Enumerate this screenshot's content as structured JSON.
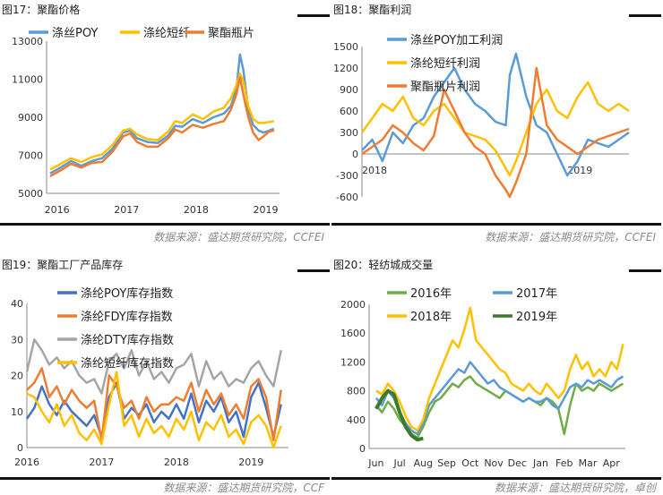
{
  "panels": [
    {
      "title": "图17：聚酯价格",
      "source": "数据来源：盛达期货研究院，CCFEI"
    },
    {
      "title": "图18：聚酯利润",
      "source": "数据来源：盛达期货研究院，CCFEI"
    },
    {
      "title": "图19：聚酯工厂产品库存",
      "source": "数据来源：盛达期货研究院，CCF"
    },
    {
      "title": "图20：轻纺城成交量",
      "source": "数据来源：盛达期货研究院，卓创"
    }
  ],
  "chart_data": [
    {
      "type": "line",
      "title": "图17：聚酯价格",
      "ylim": [
        5000,
        13000
      ],
      "yticks": [
        "5000",
        "7000",
        "9000",
        "11000",
        "13000"
      ],
      "xticks": [
        "2016",
        "2017",
        "2018",
        "2019"
      ],
      "xtick_pos": [
        2016.0,
        2017.0,
        2018.0,
        2019.0
      ],
      "xlim": [
        2015.85,
        2019.2
      ],
      "x": [
        2015.9,
        2016.05,
        2016.2,
        2016.35,
        2016.5,
        2016.65,
        2016.8,
        2016.95,
        2017.05,
        2017.15,
        2017.3,
        2017.45,
        2017.6,
        2017.7,
        2017.8,
        2017.95,
        2018.1,
        2018.25,
        2018.4,
        2018.5,
        2018.58,
        2018.63,
        2018.68,
        2018.75,
        2018.82,
        2018.9,
        2018.97,
        2019.05,
        2019.12
      ],
      "series": [
        {
          "name": "涤丝POY",
          "color": "#5b9bd5",
          "values": [
            6050,
            6350,
            6700,
            6450,
            6700,
            6850,
            7350,
            8200,
            8300,
            7900,
            7700,
            7650,
            8050,
            8550,
            8500,
            8900,
            8700,
            9000,
            9200,
            9600,
            10500,
            12300,
            11500,
            9400,
            8600,
            8300,
            8200,
            8300,
            8400
          ]
        },
        {
          "name": "涤纶短纤",
          "color": "#ffc000",
          "values": [
            6250,
            6550,
            6850,
            6650,
            6900,
            7050,
            7550,
            8300,
            8400,
            8100,
            7850,
            7800,
            8250,
            8800,
            8700,
            9150,
            8900,
            9300,
            9500,
            10000,
            10700,
            11300,
            10900,
            9600,
            8900,
            8700,
            8700,
            8750,
            8800
          ]
        },
        {
          "name": "聚酯瓶片",
          "color": "#ed7d31",
          "values": [
            5900,
            6200,
            6550,
            6350,
            6600,
            6650,
            7200,
            8000,
            8150,
            7700,
            7450,
            7450,
            7900,
            8350,
            8200,
            8600,
            8450,
            8650,
            8800,
            9400,
            10200,
            11100,
            10200,
            9000,
            8200,
            7800,
            8000,
            8250,
            8300
          ]
        }
      ]
    },
    {
      "type": "line",
      "title": "图18：聚酯利润",
      "ylim": [
        -600,
        1500
      ],
      "yticks": [
        "-600",
        "-300",
        "0",
        "300",
        "600",
        "900",
        "1200",
        "1500"
      ],
      "xticks": [
        "2018",
        "2019"
      ],
      "xtick_pos": [
        0.0,
        1.0
      ],
      "xlim": [
        0.0,
        1.3
      ],
      "x": [
        0.0,
        0.05,
        0.1,
        0.15,
        0.2,
        0.25,
        0.3,
        0.35,
        0.4,
        0.45,
        0.5,
        0.55,
        0.6,
        0.65,
        0.7,
        0.72,
        0.75,
        0.8,
        0.85,
        0.9,
        0.95,
        1.0,
        1.05,
        1.1,
        1.15,
        1.2,
        1.25,
        1.3
      ],
      "series": [
        {
          "name": "涤丝POY加工利润",
          "color": "#5b9bd5",
          "values": [
            50,
            200,
            -100,
            300,
            150,
            400,
            500,
            800,
            1000,
            1200,
            900,
            700,
            600,
            450,
            400,
            1100,
            1400,
            800,
            400,
            300,
            0,
            -300,
            -100,
            200,
            150,
            100,
            200,
            300
          ]
        },
        {
          "name": "涤纶短纤利润",
          "color": "#ffc000",
          "values": [
            300,
            500,
            700,
            600,
            800,
            500,
            400,
            600,
            700,
            500,
            300,
            250,
            200,
            50,
            -200,
            -300,
            -100,
            300,
            700,
            900,
            600,
            500,
            800,
            1000,
            700,
            600,
            700,
            600
          ]
        },
        {
          "name": "聚酯瓶片利润",
          "color": "#ed7d31",
          "values": [
            0,
            100,
            200,
            400,
            300,
            150,
            50,
            250,
            900,
            600,
            300,
            100,
            0,
            -300,
            -500,
            -600,
            -400,
            0,
            1200,
            400,
            200,
            100,
            0,
            100,
            200,
            250,
            300,
            350
          ]
        }
      ]
    },
    {
      "type": "line",
      "title": "图19：聚酯工厂产品库存",
      "ylim": [
        0,
        40
      ],
      "yticks": [
        "0",
        "10",
        "20",
        "30",
        "40"
      ],
      "xticks": [
        "2016",
        "2017",
        "2018",
        "2019"
      ],
      "xtick_pos": [
        2016.0,
        2017.0,
        2018.0,
        2019.0
      ],
      "xlim": [
        2016.0,
        2019.5
      ],
      "x": [
        2016.0,
        2016.1,
        2016.2,
        2016.3,
        2016.4,
        2016.5,
        2016.6,
        2016.7,
        2016.8,
        2016.9,
        2017.0,
        2017.1,
        2017.2,
        2017.3,
        2017.4,
        2017.5,
        2017.6,
        2017.7,
        2017.8,
        2017.9,
        2018.0,
        2018.1,
        2018.2,
        2018.3,
        2018.4,
        2018.5,
        2018.6,
        2018.7,
        2018.8,
        2018.9,
        2019.0,
        2019.1,
        2019.2,
        2019.3,
        2019.4
      ],
      "series": [
        {
          "name": "涤纶POY库存指数",
          "color": "#4472c4",
          "values": [
            8,
            11,
            17,
            12,
            9,
            13,
            10,
            8,
            6,
            9,
            3,
            14,
            18,
            8,
            11,
            9,
            12,
            7,
            10,
            8,
            12,
            8,
            15,
            7,
            13,
            10,
            14,
            7,
            10,
            3,
            14,
            18,
            11,
            3,
            12
          ]
        },
        {
          "name": "涤纶FDY库存指数",
          "color": "#ed7d31",
          "values": [
            16,
            18,
            22,
            14,
            17,
            12,
            16,
            13,
            11,
            13,
            2,
            20,
            17,
            11,
            13,
            8,
            14,
            10,
            12,
            12,
            14,
            13,
            18,
            10,
            16,
            12,
            15,
            9,
            12,
            8,
            17,
            19,
            14,
            2,
            16
          ]
        },
        {
          "name": "涤纶DTY库存指数",
          "color": "#a5a5a5",
          "values": [
            21,
            30,
            27,
            23,
            25,
            22,
            24,
            20,
            18,
            19,
            15,
            24,
            26,
            22,
            27,
            20,
            24,
            19,
            21,
            18,
            22,
            23,
            26,
            17,
            24,
            19,
            21,
            17,
            19,
            18,
            22,
            24,
            20,
            17,
            27
          ]
        },
        {
          "name": "涤纶短纤库存指数",
          "color": "#ffc000",
          "values": [
            15,
            14,
            10,
            7,
            12,
            6,
            9,
            4,
            2,
            5,
            1,
            12,
            21,
            6,
            9,
            3,
            8,
            4,
            6,
            3,
            8,
            5,
            10,
            2,
            7,
            5,
            9,
            3,
            5,
            1,
            7,
            9,
            6,
            0,
            6
          ]
        }
      ]
    },
    {
      "type": "line",
      "title": "图20：轻纺城成交量",
      "ylim": [
        0,
        2000
      ],
      "yticks": [
        "0",
        "400",
        "800",
        "1200",
        "1600",
        "2000"
      ],
      "xticks": [
        "Jun",
        "Jul",
        "Aug",
        "Sep",
        "Oct",
        "Nov",
        "Dec",
        "Jan",
        "Feb",
        "Mar",
        "Apr"
      ],
      "xtick_pos": [
        0,
        1,
        2,
        3,
        4,
        5,
        6,
        7,
        8,
        9,
        10
      ],
      "xlim": [
        -0.3,
        10.6
      ],
      "x": [
        0,
        0.25,
        0.5,
        0.75,
        1,
        1.25,
        1.5,
        1.75,
        2,
        2.25,
        2.5,
        2.75,
        3,
        3.25,
        3.5,
        3.75,
        4,
        4.25,
        4.5,
        4.75,
        5,
        5.25,
        5.5,
        5.75,
        6,
        6.25,
        6.5,
        6.75,
        7,
        7.25,
        7.5,
        7.75,
        8,
        8.25,
        8.5,
        8.75,
        9,
        9.25,
        9.5,
        9.75,
        10,
        10.25,
        10.5
      ],
      "series": [
        {
          "name": "2016年",
          "color": "#70ad47",
          "values": [
            600,
            500,
            650,
            550,
            400,
            300,
            200,
            150,
            300,
            500,
            650,
            700,
            800,
            900,
            850,
            950,
            1000,
            900,
            850,
            800,
            750,
            700,
            800,
            750,
            700,
            650,
            700,
            650,
            600,
            700,
            650,
            550,
            200,
            600,
            900,
            800,
            850,
            800,
            900,
            850,
            800,
            850,
            900
          ]
        },
        {
          "name": "2017年",
          "color": "#5b9bd5",
          "values": [
            700,
            600,
            800,
            700,
            500,
            350,
            250,
            200,
            350,
            600,
            700,
            800,
            900,
            1000,
            1100,
            1050,
            1200,
            1100,
            1000,
            900,
            950,
            850,
            800,
            750,
            700,
            650,
            700,
            650,
            650,
            700,
            600,
            550,
            700,
            850,
            900,
            850,
            950,
            900,
            950,
            900,
            850,
            950,
            1000
          ]
        },
        {
          "name": "2018年",
          "color": "#ffc000",
          "values": [
            800,
            750,
            900,
            800,
            650,
            450,
            300,
            250,
            400,
            700,
            900,
            1100,
            1300,
            1500,
            1400,
            1650,
            1950,
            1500,
            1400,
            1300,
            1200,
            1100,
            1050,
            900,
            850,
            800,
            900,
            800,
            750,
            900,
            800,
            700,
            800,
            1100,
            1300,
            1100,
            1200,
            1000,
            1100,
            1000,
            1200,
            1100,
            1450
          ]
        },
        {
          "name": "2019年",
          "color": "#3d7a2e",
          "values": [
            550,
            700,
            800,
            750,
            500,
            300,
            180,
            120,
            140,
            null,
            null,
            null,
            null,
            null,
            null,
            null,
            null,
            null,
            null,
            null,
            null,
            null,
            null,
            null,
            null,
            null,
            null,
            null,
            null,
            null,
            null,
            null,
            null,
            null,
            null,
            null,
            null,
            null,
            null,
            null,
            null,
            null,
            null
          ]
        }
      ]
    }
  ]
}
